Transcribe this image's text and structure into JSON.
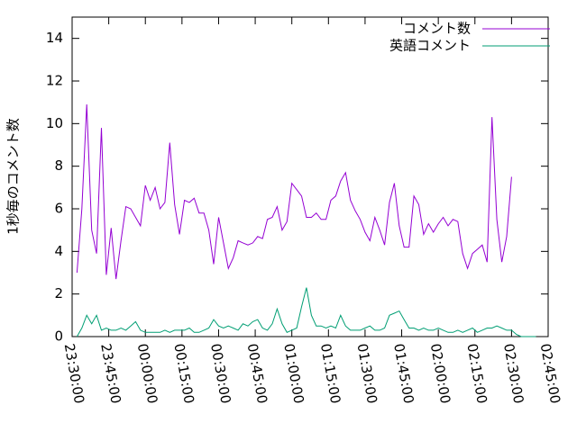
{
  "chart_data": {
    "type": "line",
    "ylabel": "1秒毎のコメント数",
    "x": [
      "23:32:00",
      "23:34:00",
      "23:36:00",
      "23:38:00",
      "23:40:00",
      "23:42:00",
      "23:44:00",
      "23:46:00",
      "23:48:00",
      "23:50:00",
      "23:52:00",
      "23:54:00",
      "23:56:00",
      "23:58:00",
      "00:00:00",
      "00:02:00",
      "00:04:00",
      "00:06:00",
      "00:08:00",
      "00:10:00",
      "00:12:00",
      "00:14:00",
      "00:16:00",
      "00:18:00",
      "00:20:00",
      "00:22:00",
      "00:24:00",
      "00:26:00",
      "00:28:00",
      "00:30:00",
      "00:32:00",
      "00:34:00",
      "00:36:00",
      "00:38:00",
      "00:40:00",
      "00:42:00",
      "00:44:00",
      "00:46:00",
      "00:48:00",
      "00:50:00",
      "00:52:00",
      "00:54:00",
      "00:56:00",
      "00:58:00",
      "01:00:00",
      "01:02:00",
      "01:04:00",
      "01:06:00",
      "01:08:00",
      "01:10:00",
      "01:12:00",
      "01:14:00",
      "01:16:00",
      "01:18:00",
      "01:20:00",
      "01:22:00",
      "01:24:00",
      "01:26:00",
      "01:28:00",
      "01:30:00",
      "01:32:00",
      "01:34:00",
      "01:36:00",
      "01:38:00",
      "01:40:00",
      "01:42:00",
      "01:44:00",
      "01:46:00",
      "01:48:00",
      "01:50:00",
      "01:52:00",
      "01:54:00",
      "01:56:00",
      "01:58:00",
      "02:00:00",
      "02:02:00",
      "02:04:00",
      "02:06:00",
      "02:08:00",
      "02:10:00",
      "02:12:00",
      "02:14:00",
      "02:16:00",
      "02:18:00",
      "02:20:00",
      "02:22:00",
      "02:24:00",
      "02:26:00",
      "02:28:00",
      "02:30:00",
      "02:32:00",
      "02:34:00",
      "02:36:00",
      "02:38:00",
      "02:40:00"
    ],
    "series": [
      {
        "name": "コメント数",
        "color": "#9400d3",
        "values": [
          3.0,
          6.0,
          10.9,
          5.0,
          3.9,
          9.8,
          2.9,
          5.1,
          2.7,
          4.5,
          6.1,
          6.0,
          5.6,
          5.2,
          7.1,
          6.4,
          7.0,
          6.0,
          6.3,
          9.1,
          6.2,
          4.8,
          6.4,
          6.3,
          6.5,
          5.8,
          5.8,
          5.0,
          3.4,
          5.6,
          4.4,
          3.2,
          3.7,
          4.5,
          4.4,
          4.3,
          4.4,
          4.7,
          4.6,
          5.5,
          5.6,
          6.1,
          5.0,
          5.4,
          7.2,
          6.9,
          6.6,
          5.6,
          5.6,
          5.8,
          5.5,
          5.5,
          6.4,
          6.6,
          7.3,
          7.7,
          6.4,
          5.9,
          5.5,
          4.9,
          4.5,
          5.6,
          5.0,
          4.3,
          6.3,
          7.2,
          5.2,
          4.2,
          4.2,
          6.6,
          6.2,
          4.8,
          5.3,
          4.9,
          5.3,
          5.6,
          5.2,
          5.5,
          5.4,
          3.9,
          3.2,
          3.9,
          4.1,
          4.3,
          3.5,
          10.3,
          5.5,
          3.5,
          4.7,
          7.5,
          null,
          null,
          null,
          null,
          null
        ]
      },
      {
        "name": "英語コメント",
        "color": "#009e73",
        "values": [
          0,
          0.4,
          1.0,
          0.6,
          1.0,
          0.3,
          0.4,
          0.3,
          0.3,
          0.4,
          0.3,
          0.5,
          0.7,
          0.3,
          0.2,
          0.2,
          0.2,
          0.2,
          0.3,
          0.2,
          0.3,
          0.3,
          0.3,
          0.4,
          0.2,
          0.2,
          0.3,
          0.4,
          0.8,
          0.5,
          0.4,
          0.5,
          0.4,
          0.3,
          0.6,
          0.5,
          0.7,
          0.8,
          0.4,
          0.3,
          0.6,
          1.3,
          0.6,
          0.2,
          0.3,
          0.4,
          1.4,
          2.3,
          1.0,
          0.5,
          0.5,
          0.4,
          0.5,
          0.4,
          1.0,
          0.5,
          0.3,
          0.3,
          0.3,
          0.4,
          0.5,
          0.3,
          0.3,
          0.4,
          1.0,
          1.1,
          1.2,
          0.8,
          0.4,
          0.4,
          0.3,
          0.4,
          0.3,
          0.3,
          0.4,
          0.3,
          0.2,
          0.2,
          0.3,
          0.2,
          0.3,
          0.4,
          0.2,
          0.3,
          0.4,
          0.4,
          0.5,
          0.4,
          0.3,
          0.3,
          0.1,
          0,
          0,
          0,
          0
        ]
      }
    ],
    "xlim": [
      "23:30:00",
      "02:45:00"
    ],
    "xticks": [
      "23:30:00",
      "23:45:00",
      "00:00:00",
      "00:15:00",
      "00:30:00",
      "00:45:00",
      "01:00:00",
      "01:15:00",
      "01:30:00",
      "01:45:00",
      "02:00:00",
      "02:15:00",
      "02:30:00",
      "02:45:00"
    ],
    "ylim": [
      0,
      15
    ],
    "yticks": [
      0,
      2,
      4,
      6,
      8,
      10,
      12,
      14
    ],
    "legend": "top-right"
  }
}
